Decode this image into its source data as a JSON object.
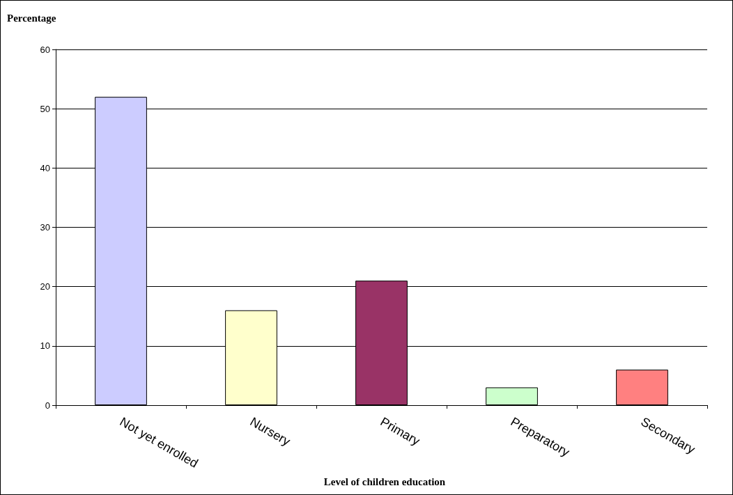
{
  "chart_data": {
    "type": "bar",
    "ylabel": "Percentage",
    "xlabel": "Level of children education",
    "categories": [
      "Not yet enrolled",
      "Nursery",
      "Primary",
      "Preparatory",
      "Secondary"
    ],
    "values": [
      52,
      16,
      21,
      3,
      6
    ],
    "colors": [
      "#ccccff",
      "#ffffcc",
      "#993366",
      "#ccffcc",
      "#ff8080"
    ],
    "ylim": [
      0,
      60
    ],
    "yticks": [
      0,
      10,
      20,
      30,
      40,
      50,
      60
    ],
    "grid": "y"
  }
}
